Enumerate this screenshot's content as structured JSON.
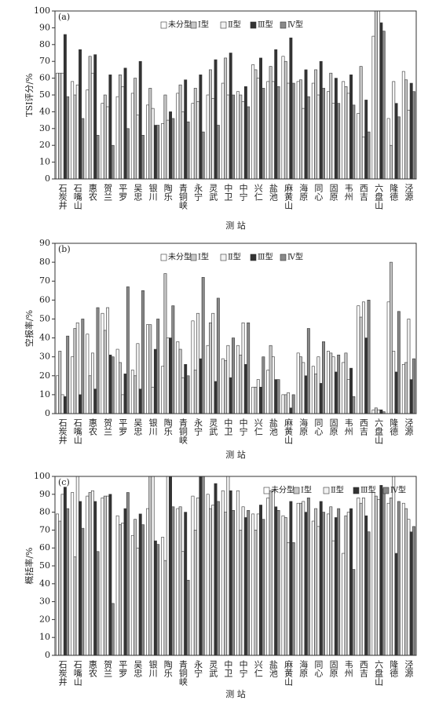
{
  "chart_data": [
    {
      "type": "bar",
      "panel_label": "(a)",
      "ylabel": "TSI评分/%",
      "xlabel": "测 站",
      "legend": "upper center",
      "categories": [
        "石炭井",
        "石嘴山",
        "惠农",
        "贺兰",
        "平罗",
        "吴忠",
        "银川",
        "陶乐",
        "青铜峡",
        "永宁",
        "灵武",
        "中卫",
        "中宁",
        "兴仁",
        "盐池",
        "麻黄山",
        "海原",
        "同心",
        "固原",
        "韦州",
        "西吉",
        "六盘山",
        "隆德",
        "泾源"
      ],
      "ylim": [
        0,
        100
      ],
      "yticks": [
        0,
        10,
        20,
        30,
        40,
        50,
        60,
        70,
        80,
        90,
        100
      ],
      "series": [
        {
          "name": "未分型",
          "color": "#ffffff",
          "values": [
            63,
            58,
            53,
            45,
            49,
            51,
            44,
            33,
            51,
            45,
            50,
            57,
            52,
            68,
            58,
            73,
            58,
            57,
            52,
            58,
            39,
            85,
            36,
            64
          ]
        },
        {
          "name": "Ⅰ型",
          "color": "#c8c8c8",
          "values": [
            63,
            50,
            73,
            50,
            62,
            60,
            54,
            50,
            56,
            54,
            65,
            72,
            50,
            65,
            67,
            70,
            59,
            65,
            63,
            55,
            67,
            100,
            20,
            59
          ]
        },
        {
          "name": "Ⅱ型",
          "color": "#f2f2f2",
          "values": [
            63,
            56,
            63,
            43,
            55,
            38,
            42,
            35,
            40,
            46,
            48,
            50,
            46,
            60,
            58,
            57,
            42,
            50,
            45,
            51,
            25,
            100,
            58,
            41
          ]
        },
        {
          "name": "Ⅲ型",
          "color": "#333333",
          "values": [
            86,
            77,
            74,
            62,
            66,
            70,
            32,
            40,
            59,
            62,
            71,
            75,
            55,
            72,
            77,
            84,
            65,
            70,
            60,
            62,
            47,
            93,
            45,
            57
          ]
        },
        {
          "name": "Ⅳ型",
          "color": "#8a8a8a",
          "values": [
            49,
            36,
            26,
            20,
            30,
            26,
            32,
            36,
            34,
            28,
            32,
            50,
            43,
            54,
            55,
            57,
            49,
            54,
            45,
            44,
            28,
            88,
            37,
            52
          ]
        }
      ]
    },
    {
      "type": "bar",
      "panel_label": "(b)",
      "ylabel": "空报率/%",
      "xlabel": "测 站",
      "legend": "upper center",
      "categories": [
        "石炭井",
        "石嘴山",
        "惠农",
        "贺兰",
        "平罗",
        "吴忠",
        "银川",
        "陶乐",
        "青铜峡",
        "永宁",
        "灵武",
        "中卫",
        "中宁",
        "兴仁",
        "盐池",
        "麻黄山",
        "海原",
        "同心",
        "固原",
        "韦州",
        "西吉",
        "六盘山",
        "隆德",
        "泾源"
      ],
      "ylim": [
        0,
        90
      ],
      "yticks": [
        0,
        10,
        20,
        30,
        40,
        50,
        60,
        70,
        80,
        90
      ],
      "series": [
        {
          "name": "未分型",
          "color": "#ffffff",
          "values": [
            20,
            30,
            42,
            53,
            34,
            23,
            47,
            25,
            38,
            49,
            36,
            29,
            36,
            14,
            23,
            10,
            32,
            25,
            33,
            27,
            57,
            2,
            59,
            26
          ]
        },
        {
          "name": "Ⅰ型",
          "color": "#c8c8c8",
          "values": [
            33,
            45,
            20,
            44,
            27,
            20,
            47,
            74,
            34,
            23,
            48,
            28,
            31,
            14,
            36,
            10,
            30,
            21,
            32,
            32,
            51,
            3,
            80,
            27
          ]
        },
        {
          "name": "Ⅱ型",
          "color": "#f2f2f2",
          "values": [
            10,
            48,
            32,
            56,
            10,
            37,
            14,
            40,
            19,
            53,
            53,
            36,
            48,
            18,
            30,
            11,
            27,
            30,
            30,
            18,
            59,
            2,
            33,
            50
          ]
        },
        {
          "name": "Ⅲ型",
          "color": "#333333",
          "values": [
            9,
            10,
            13,
            31,
            21,
            13,
            34,
            40,
            26,
            29,
            17,
            19,
            26,
            14,
            18,
            3,
            20,
            16,
            22,
            24,
            40,
            2,
            22,
            18
          ]
        },
        {
          "name": "Ⅳ型",
          "color": "#8a8a8a",
          "values": [
            41,
            50,
            56,
            30,
            67,
            65,
            50,
            57,
            20,
            72,
            61,
            40,
            48,
            30,
            18,
            10,
            45,
            38,
            31,
            9,
            60,
            1,
            54,
            29
          ]
        }
      ]
    },
    {
      "type": "bar",
      "panel_label": "(c)",
      "ylabel": "概括率/%",
      "xlabel": "测 站",
      "legend": "upper right",
      "categories": [
        "石炭井",
        "石嘴山",
        "惠农",
        "贺兰",
        "平罗",
        "吴忠",
        "银川",
        "陶乐",
        "青铜峡",
        "永宁",
        "灵武",
        "中卫",
        "中宁",
        "兴仁",
        "盐池",
        "麻黄山",
        "海原",
        "同心",
        "固原",
        "韦州",
        "西吉",
        "六盘山",
        "隆德",
        "泾源"
      ],
      "ylim": [
        0,
        100
      ],
      "yticks": [
        0,
        10,
        20,
        30,
        40,
        50,
        60,
        70,
        80,
        90,
        100
      ],
      "series": [
        {
          "name": "未分型",
          "color": "#ffffff",
          "values": [
            79,
            91,
            89,
            88,
            78,
            67,
            82,
            66,
            82,
            89,
            90,
            92,
            92,
            79,
            88,
            78,
            85,
            75,
            79,
            57,
            88,
            91,
            85,
            85
          ]
        },
        {
          "name": "Ⅰ型",
          "color": "#c8c8c8",
          "values": [
            75,
            55,
            91,
            89,
            73,
            76,
            100,
            53,
            83,
            70,
            82,
            80,
            70,
            70,
            92,
            77,
            85,
            82,
            83,
            78,
            85,
            89,
            88,
            82
          ]
        },
        {
          "name": "Ⅱ型",
          "color": "#f2f2f2",
          "values": [
            90,
            100,
            92,
            89,
            74,
            60,
            100,
            100,
            58,
            88,
            84,
            100,
            83,
            79,
            92,
            63,
            86,
            72,
            64,
            80,
            88,
            87,
            100,
            76
          ]
        },
        {
          "name": "Ⅲ型",
          "color": "#333333",
          "values": [
            94,
            86,
            86,
            90,
            82,
            79,
            64,
            100,
            80,
            100,
            96,
            92,
            77,
            84,
            83,
            86,
            80,
            86,
            77,
            82,
            78,
            95,
            57,
            69
          ]
        },
        {
          "name": "Ⅳ型",
          "color": "#8a8a8a",
          "values": [
            82,
            71,
            58,
            29,
            91,
            73,
            62,
            83,
            42,
            100,
            86,
            81,
            81,
            76,
            81,
            63,
            88,
            80,
            82,
            48,
            69,
            93,
            86,
            72
          ]
        }
      ]
    }
  ]
}
